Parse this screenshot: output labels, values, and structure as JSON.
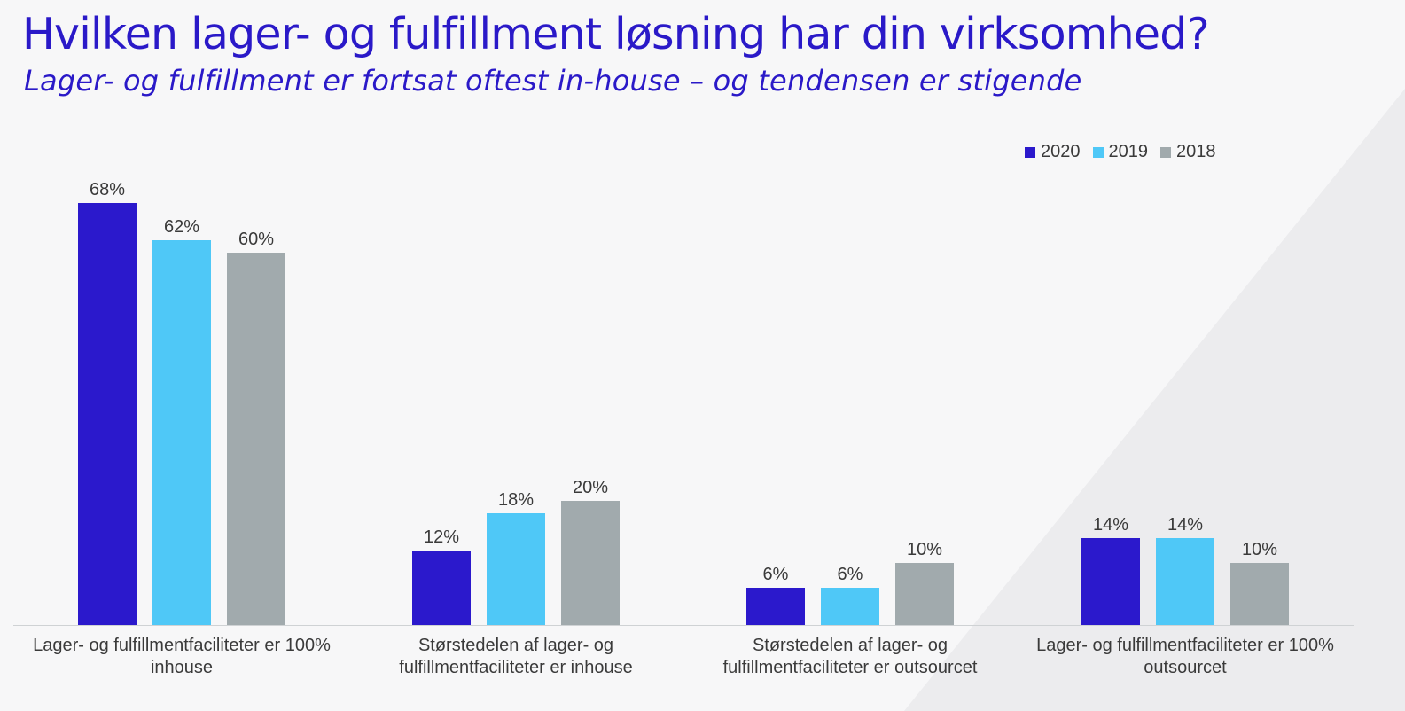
{
  "header": {
    "title": "Hvilken lager- og fulfillment løsning har din virksomhed?",
    "subtitle": "Lager- og fulfillment er fortsat oftest in-house – og tendensen er stigende"
  },
  "colors": {
    "2020": "#2b19cc",
    "2019": "#4fc8f7",
    "2018": "#a1aaad",
    "axis": "#cfd2d4"
  },
  "chart_data": {
    "type": "bar",
    "title": "Hvilken lager- og fulfillment løsning har din virksomhed?",
    "subtitle": "Lager- og fulfillment er fortsat oftest in-house – og tendensen er stigende",
    "categories": [
      "Lager- og fulfillmentfaciliteter er 100% inhouse",
      "Størstedelen af lager- og fulfillmentfaciliteter er inhouse",
      "Størstedelen af lager- og fulfillmentfaciliteter er outsourcet",
      "Lager- og fulfillmentfaciliteter er 100% outsourcet"
    ],
    "series": [
      {
        "name": "2020",
        "values": [
          68,
          12,
          6,
          14
        ],
        "labels": [
          "68%",
          "12%",
          "6%",
          "14%"
        ]
      },
      {
        "name": "2019",
        "values": [
          62,
          18,
          6,
          14
        ],
        "labels": [
          "62%",
          "18%",
          "6%",
          "14%"
        ]
      },
      {
        "name": "2018",
        "values": [
          60,
          20,
          10,
          10
        ],
        "labels": [
          "60%",
          "20%",
          "10%",
          "10%"
        ]
      }
    ],
    "xlabel": "",
    "ylabel": "",
    "ylim": [
      0,
      70
    ],
    "grid": false,
    "legend": "top-right"
  }
}
